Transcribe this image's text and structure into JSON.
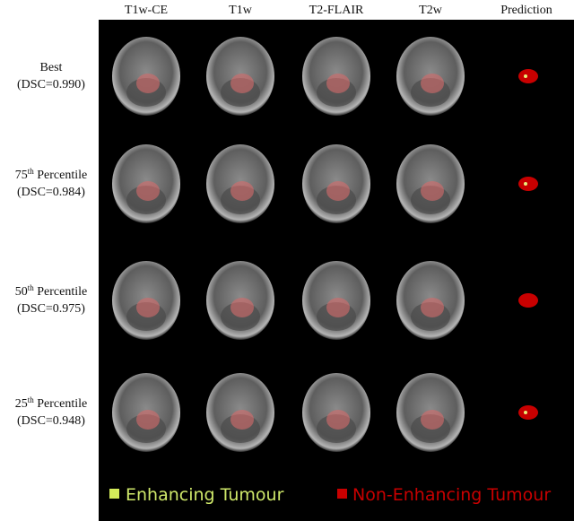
{
  "columns": [
    "T1w-CE",
    "T1w",
    "T2-FLAIR",
    "T2w",
    "Prediction"
  ],
  "rows": [
    {
      "label": [
        "Best"
      ],
      "dsc": "(DSC=0.990)"
    },
    {
      "label": [
        "75",
        "th",
        " Percentile"
      ],
      "dsc": "(DSC=0.984)"
    },
    {
      "label": [
        "50",
        "th",
        " Percentile"
      ],
      "dsc": "(DSC=0.975)"
    },
    {
      "label": [
        "25",
        "th",
        " Percentile"
      ],
      "dsc": "(DSC=0.948)"
    }
  ],
  "legend": [
    "Enhancing Tumour",
    "Non-Enhancing Tumour"
  ]
}
